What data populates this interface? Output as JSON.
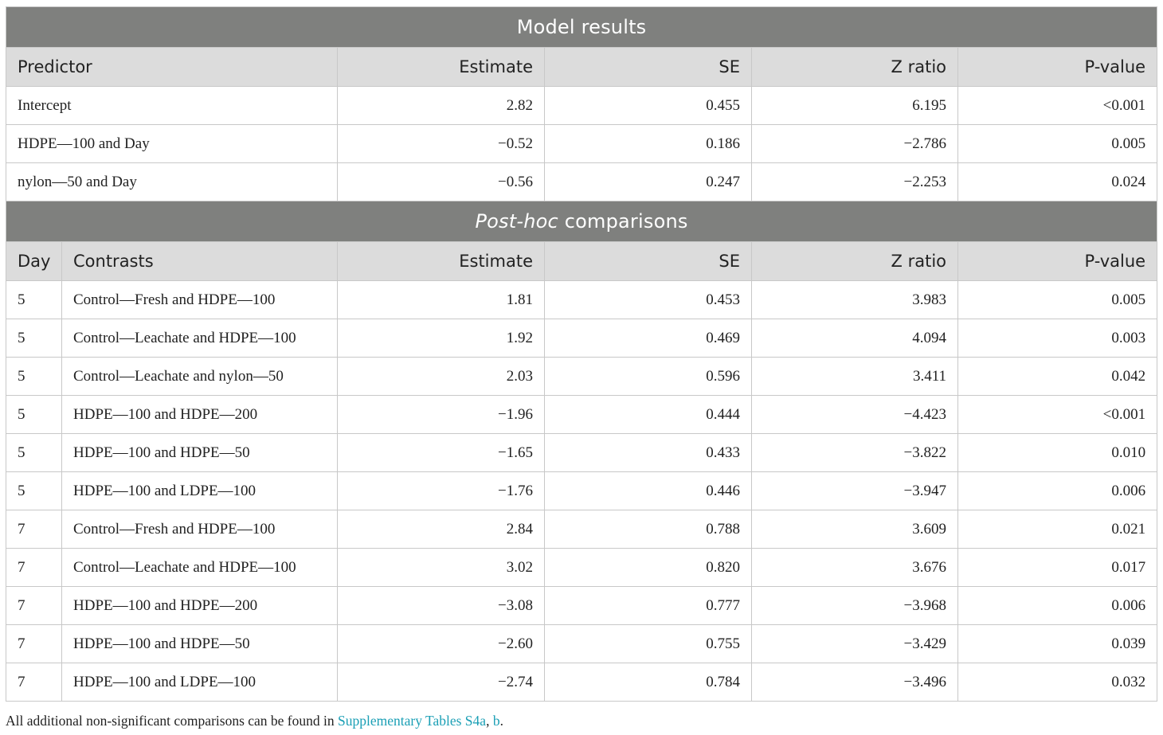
{
  "model": {
    "title": "Model results",
    "headers": [
      "Predictor",
      "Estimate",
      "SE",
      "Z ratio",
      "P-value"
    ],
    "rows": [
      {
        "predictor": "Intercept",
        "estimate": "2.82",
        "se": "0.455",
        "z": "6.195",
        "p": "<0.001"
      },
      {
        "predictor": "HDPE—100 and Day",
        "estimate": "−0.52",
        "se": "0.186",
        "z": "−2.786",
        "p": "0.005"
      },
      {
        "predictor": "nylon—50 and Day",
        "estimate": "−0.56",
        "se": "0.247",
        "z": "−2.253",
        "p": "0.024"
      }
    ]
  },
  "posthoc": {
    "title_italic": "Post-hoc",
    "title_rest": " comparisons",
    "headers": [
      "Day",
      "Contrasts",
      "Estimate",
      "SE",
      "Z ratio",
      "P-value"
    ],
    "rows": [
      {
        "day": "5",
        "contrast": "Control—Fresh and HDPE—100",
        "estimate": "1.81",
        "se": "0.453",
        "z": "3.983",
        "p": "0.005"
      },
      {
        "day": "5",
        "contrast": "Control—Leachate and HDPE—100",
        "estimate": "1.92",
        "se": "0.469",
        "z": "4.094",
        "p": "0.003"
      },
      {
        "day": "5",
        "contrast": "Control—Leachate and nylon—50",
        "estimate": "2.03",
        "se": "0.596",
        "z": "3.411",
        "p": "0.042"
      },
      {
        "day": "5",
        "contrast": "HDPE—100 and HDPE—200",
        "estimate": "−1.96",
        "se": "0.444",
        "z": "−4.423",
        "p": "<0.001"
      },
      {
        "day": "5",
        "contrast": "HDPE—100 and HDPE—50",
        "estimate": "−1.65",
        "se": "0.433",
        "z": "−3.822",
        "p": "0.010"
      },
      {
        "day": "5",
        "contrast": "HDPE—100 and LDPE—100",
        "estimate": "−1.76",
        "se": "0.446",
        "z": "−3.947",
        "p": "0.006"
      },
      {
        "day": "7",
        "contrast": "Control—Fresh and HDPE—100",
        "estimate": "2.84",
        "se": "0.788",
        "z": "3.609",
        "p": "0.021"
      },
      {
        "day": "7",
        "contrast": "Control—Leachate and HDPE—100",
        "estimate": "3.02",
        "se": "0.820",
        "z": "3.676",
        "p": "0.017"
      },
      {
        "day": "7",
        "contrast": "HDPE—100 and HDPE—200",
        "estimate": "−3.08",
        "se": "0.777",
        "z": "−3.968",
        "p": "0.006"
      },
      {
        "day": "7",
        "contrast": "HDPE—100 and HDPE—50",
        "estimate": "−2.60",
        "se": "0.755",
        "z": "−3.429",
        "p": "0.039"
      },
      {
        "day": "7",
        "contrast": "HDPE—100 and LDPE—100",
        "estimate": "−2.74",
        "se": "0.784",
        "z": "−3.496",
        "p": "0.032"
      }
    ]
  },
  "footnote": {
    "text": "All additional non-significant comparisons can be found in ",
    "link1": "Supplementary Tables S4a",
    "sep": ", ",
    "link2": "b",
    "end": "."
  },
  "colors": {
    "title_bar": "#7f807e",
    "header_bg": "#dcdcdc",
    "link": "#1a9fb5"
  }
}
